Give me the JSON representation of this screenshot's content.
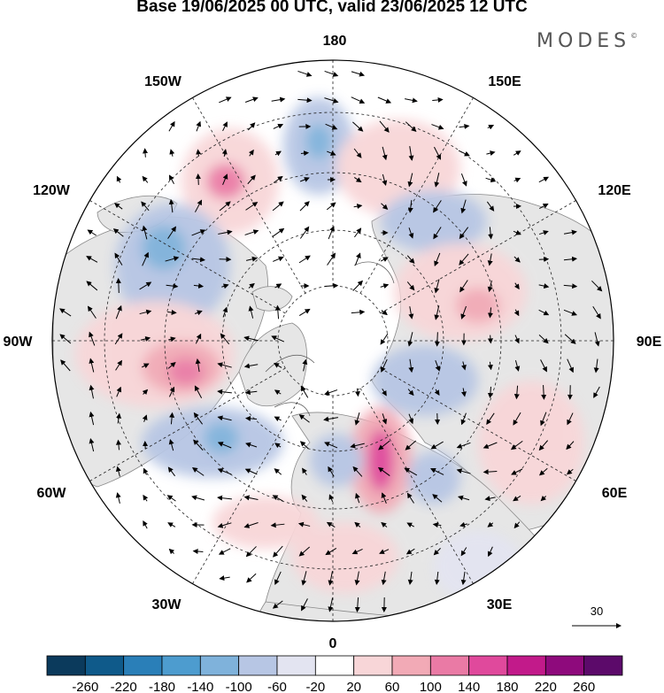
{
  "title": "Base 19/06/2025 00 UTC, valid 23/06/2025 12 UTC",
  "brand": "MODES",
  "brand_mark": "©",
  "longitude_labels": {
    "top": "180",
    "bottom": "0",
    "left": "90W",
    "right": "90E",
    "upper_left_1": "150W",
    "upper_left_2": "120W",
    "lower_left_1": "60W",
    "lower_left_2": "30W",
    "upper_right_1": "150E",
    "upper_right_2": "120E",
    "lower_right_1": "60E",
    "lower_right_2": "30E"
  },
  "reference_vector_label": "30",
  "colorbar": {
    "labels": [
      "-260",
      "-220",
      "-180",
      "-140",
      "-100",
      "-60",
      "-20",
      "20",
      "60",
      "100",
      "140",
      "180",
      "220",
      "260"
    ],
    "colors": [
      "#0b3a5c",
      "#0f5a8a",
      "#2a7fb8",
      "#4d9ccf",
      "#7fb2db",
      "#b7c6e4",
      "#e3e4f1",
      "#ffffff",
      "#f8d6d8",
      "#f2aab6",
      "#ea7aa5",
      "#e0499c",
      "#c21a8a",
      "#8e0a7c",
      "#5c0a6a"
    ]
  },
  "land_color": "#e6e6e6",
  "ocean_color": "#ffffff"
}
